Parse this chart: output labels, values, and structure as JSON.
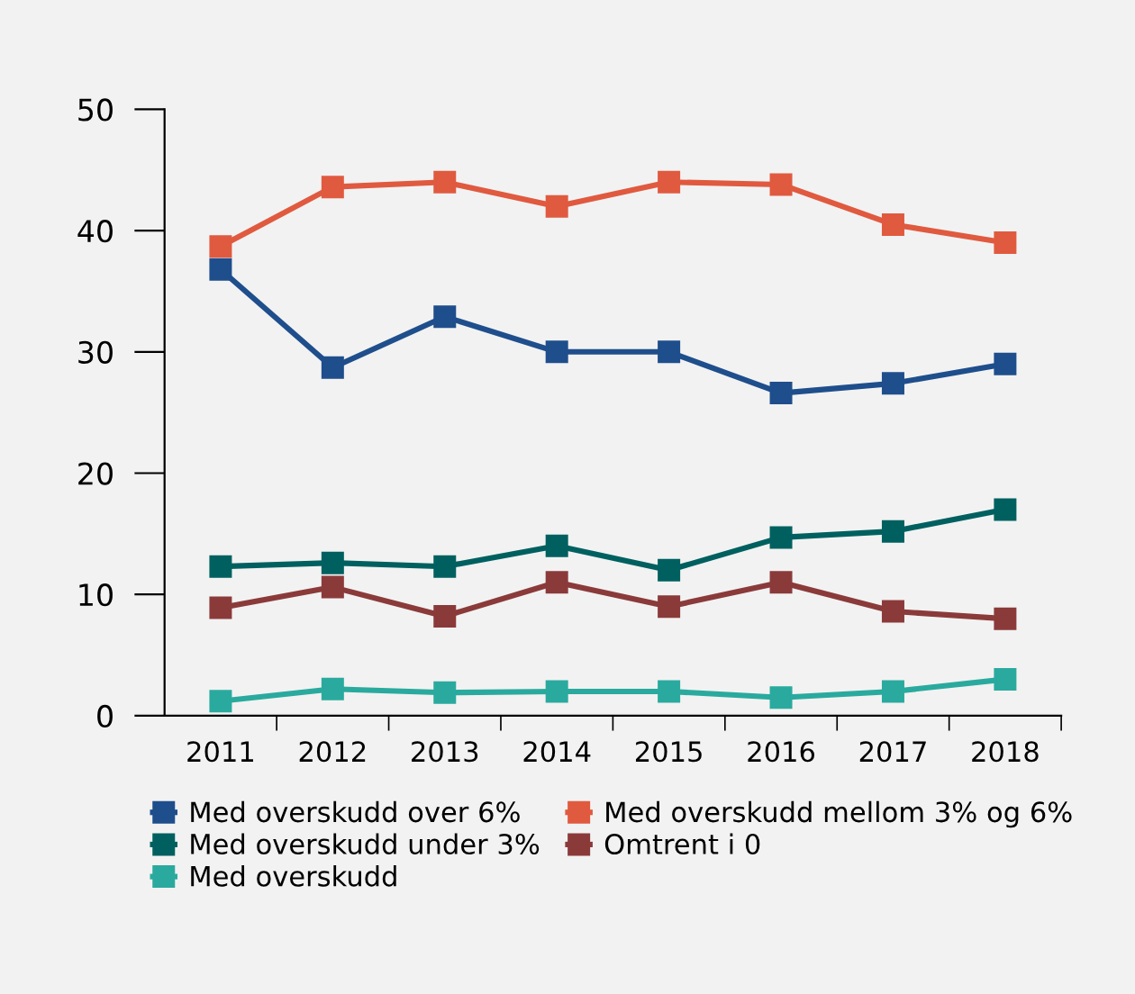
{
  "chart_data": {
    "type": "line",
    "categories": [
      "2011",
      "2012",
      "2013",
      "2014",
      "2015",
      "2016",
      "2017",
      "2018"
    ],
    "series": [
      {
        "name": "Med overskudd over 6%",
        "color": "#1f4e8c",
        "values": [
          36.8,
          28.7,
          32.9,
          30,
          30,
          26.6,
          27.4,
          29
        ]
      },
      {
        "name": "Med overskudd mellom 3% og 6%",
        "color": "#e05a3f",
        "values": [
          38.7,
          43.6,
          44,
          42,
          44,
          43.8,
          40.5,
          39
        ]
      },
      {
        "name": "Med overskudd under 3%",
        "color": "#006060",
        "values": [
          12.3,
          12.6,
          12.3,
          14,
          12,
          14.7,
          15.2,
          17
        ]
      },
      {
        "name": "Omtrent i 0",
        "color": "#8b3a3a",
        "values": [
          8.9,
          10.6,
          8.2,
          11,
          9,
          11,
          8.6,
          8
        ]
      },
      {
        "name": "Med overskudd",
        "color": "#2aaa9e",
        "values": [
          1.2,
          2.2,
          1.9,
          2,
          2,
          1.5,
          2,
          3
        ]
      }
    ],
    "ylim": [
      0,
      50
    ],
    "yticks": [
      0,
      10,
      20,
      30,
      40,
      50
    ],
    "grid": false,
    "legend": "bottom",
    "marker": "square",
    "line_style": "solid"
  }
}
